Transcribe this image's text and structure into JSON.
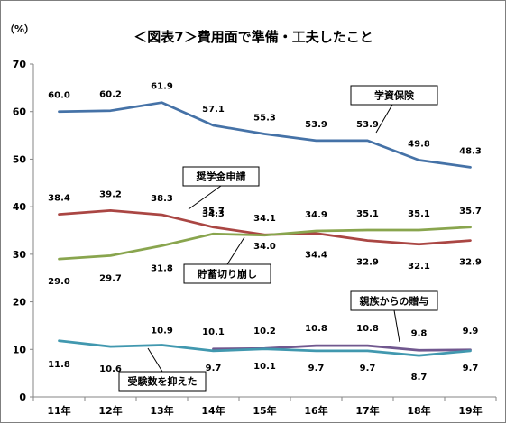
{
  "chart_data": {
    "type": "line",
    "title": "＜図表7＞費用面で準備・工夫したこと",
    "unit_label": "（%）",
    "categories": [
      "11年",
      "12年",
      "13年",
      "14年",
      "15年",
      "16年",
      "17年",
      "18年",
      "19年"
    ],
    "ylim": [
      0,
      70
    ],
    "yticks": [
      0,
      10,
      20,
      30,
      40,
      50,
      60,
      70
    ],
    "grid": false,
    "series": [
      {
        "name": "学資保険",
        "color": "#4572a7",
        "values": [
          60.0,
          60.2,
          61.9,
          57.1,
          55.3,
          53.9,
          53.9,
          49.8,
          48.3
        ],
        "labels": [
          "60.0",
          "60.2",
          "61.9",
          "57.1",
          "55.3",
          "53.9",
          "53.9",
          "49.8",
          "48.3"
        ]
      },
      {
        "name": "奨学金申請",
        "color": "#aa4643",
        "values": [
          38.4,
          39.2,
          38.3,
          35.7,
          34.1,
          34.4,
          32.9,
          32.1,
          32.9
        ],
        "labels": [
          "38.4",
          "39.2",
          "38.3",
          "35.7",
          "34.1",
          "34.4",
          "32.9",
          "32.1",
          "32.9"
        ]
      },
      {
        "name": "貯蓄切り崩し",
        "color": "#89a54e",
        "values": [
          29.0,
          29.7,
          31.8,
          34.3,
          34.0,
          34.9,
          35.1,
          35.1,
          35.7
        ],
        "labels": [
          "29.0",
          "29.7",
          "31.8",
          "34.3",
          "34.0",
          "34.9",
          "35.1",
          "35.1",
          "35.7"
        ]
      },
      {
        "name": "親族からの贈与",
        "color": "#71588f",
        "start_index": 3,
        "values": [
          null,
          null,
          null,
          10.1,
          10.2,
          10.8,
          10.8,
          9.8,
          9.9
        ],
        "labels": [
          null,
          null,
          null,
          "10.1",
          "10.2",
          "10.8",
          "10.8",
          "9.8",
          "9.9"
        ]
      },
      {
        "name": "受験数を抑えた",
        "color": "#4198af",
        "values": [
          11.8,
          10.6,
          10.9,
          9.7,
          10.1,
          9.7,
          9.7,
          8.7,
          9.7
        ],
        "labels": [
          "11.8",
          "10.6",
          "10.9",
          "9.7",
          "10.1",
          "9.7",
          "9.7",
          "8.7",
          "9.7"
        ]
      }
    ]
  }
}
